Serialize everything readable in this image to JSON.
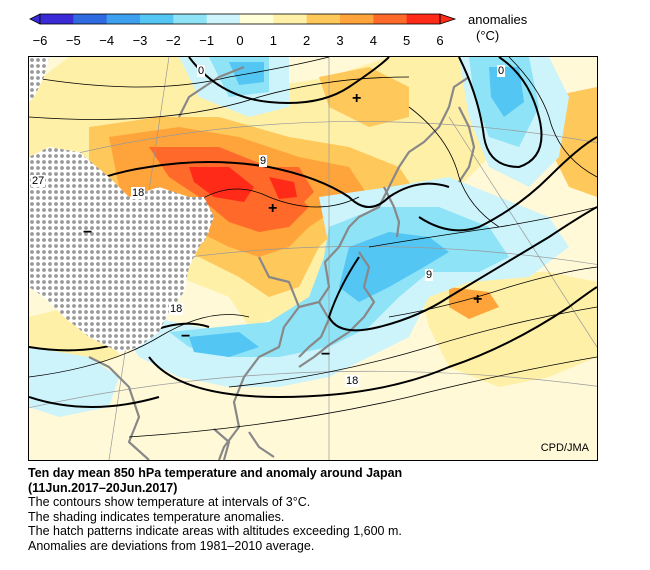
{
  "legend": {
    "title": "anomalies",
    "unit": "(°C)",
    "ticks": [
      "−6",
      "−5",
      "−4",
      "−3",
      "−2",
      "−1",
      "0",
      "1",
      "2",
      "3",
      "4",
      "5",
      "6"
    ],
    "colors": [
      "#3b2bd6",
      "#2f6be0",
      "#3da0ef",
      "#53c6f3",
      "#8fe3f7",
      "#cdf3fb",
      "#ffffd8",
      "#fff0a8",
      "#ffc85a",
      "#ffa43a",
      "#ff6a2a",
      "#ff2a18"
    ]
  },
  "map": {
    "credit": "CPD/JMA",
    "contour_labels": [
      "0",
      "0",
      "9",
      "9",
      "18",
      "18",
      "18",
      "27"
    ],
    "anomaly_symbols": [
      "+",
      "+",
      "+",
      "−",
      "−",
      "−"
    ]
  },
  "caption": {
    "title_line1": "Ten day mean 850 hPa temperature and anomaly around Japan",
    "title_line2": "(11Jun.2017–20Jun.2017)",
    "line1": "The contours show temperature at intervals of 3°C.",
    "line2": "The shading indicates temperature anomalies.",
    "line3": "The hatch patterns indicate areas with altitudes exceeding 1,600 m.",
    "line4": "Anomalies are deviations from 1981–2010 average."
  }
}
